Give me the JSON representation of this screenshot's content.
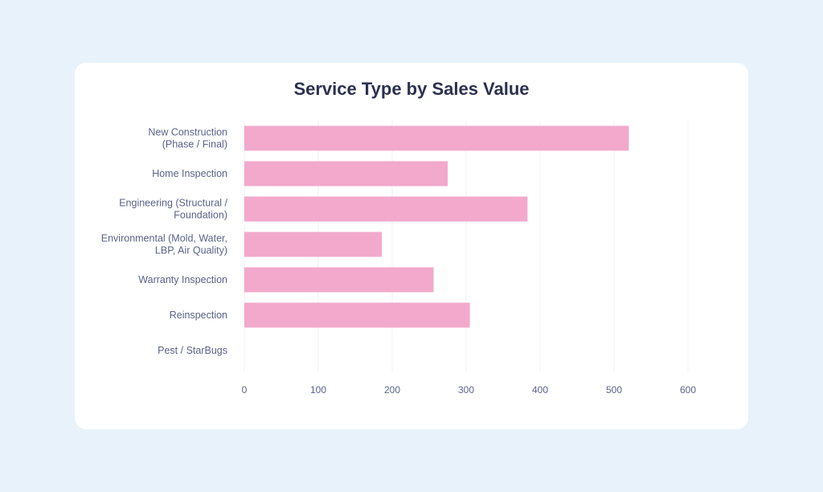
{
  "chart_data": {
    "type": "bar",
    "orientation": "horizontal",
    "title": "Service Type by Sales Value",
    "xlabel": "",
    "ylabel": "",
    "categories": [
      "New Construction (Phase / Final)",
      "Home Inspection",
      "Engineering (Structural / Foundation)",
      "Environmental (Mold, Water, LBP, Air Quality)",
      "Warranty Inspection",
      "Reinspection",
      "Pest / StarBugs"
    ],
    "values": [
      520,
      275,
      383,
      186,
      256,
      305,
      0
    ],
    "xlim": [
      0,
      600
    ],
    "xticks": [
      0,
      100,
      200,
      300,
      400,
      500,
      600
    ],
    "grid": true,
    "legend": "none",
    "colors": {
      "bar": "#f2a9cb",
      "grid": "#eef0f4",
      "text": "#5a6288",
      "title": "#2c3150"
    }
  }
}
